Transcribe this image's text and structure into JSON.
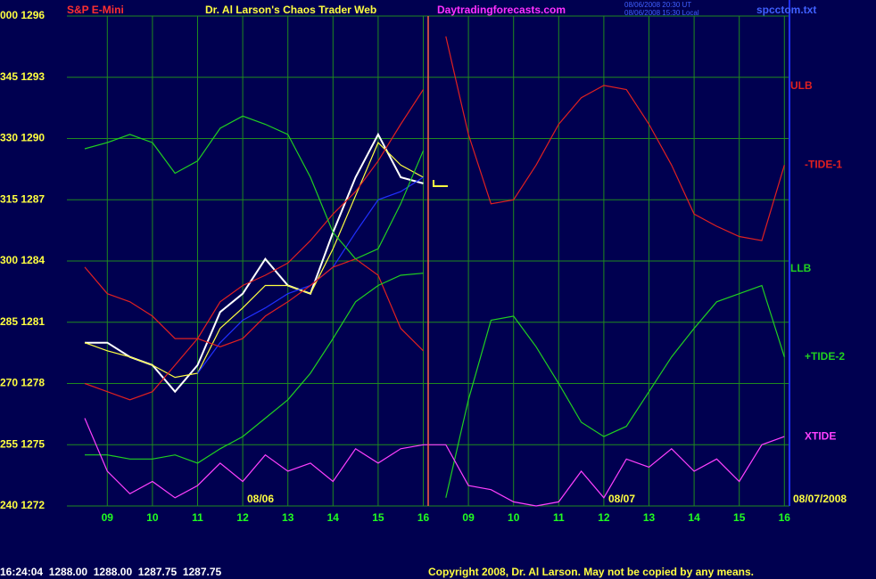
{
  "chart_data": {
    "type": "line",
    "title": "Dr. Al Larson's Chaos Trader Web",
    "categories": [
      null,
      "09",
      null,
      "10",
      null,
      "11",
      null,
      "12",
      null,
      "13",
      null,
      "14",
      null,
      "15",
      null,
      "16",
      null,
      "09",
      null,
      "10",
      null,
      "11",
      null,
      "12",
      null,
      "13",
      null,
      "14",
      null,
      "15",
      null,
      "16"
    ],
    "ylim": [
      1272,
      1296
    ],
    "yticks": [
      {
        "value": 1272,
        "label": "240 1272"
      },
      {
        "value": 1275,
        "label": "255 1275"
      },
      {
        "value": 1278,
        "label": "270 1278"
      },
      {
        "value": 1281,
        "label": "285 1281"
      },
      {
        "value": 1284,
        "label": "300 1284"
      },
      {
        "value": 1287,
        "label": "315 1287"
      },
      {
        "value": 1290,
        "label": "330 1290"
      },
      {
        "value": 1293,
        "label": "345 1293"
      },
      {
        "value": 1296,
        "label": "000 1296"
      }
    ],
    "grid": true,
    "series": [
      {
        "color": "#ffffff",
        "values": [
          1280.0,
          1280.0,
          1279.3,
          1278.9,
          1277.6,
          1278.9,
          1281.5,
          1282.4,
          1284.1,
          1282.8,
          1282.4,
          1285.4,
          1288.1,
          1290.2,
          1288.1,
          1287.8,
          null,
          null,
          null,
          null,
          null,
          null,
          null,
          null,
          null,
          null,
          null,
          null,
          null,
          null,
          null,
          null
        ]
      },
      {
        "color": "#ffff40",
        "values": [
          1280.0,
          1279.6,
          1279.3,
          1278.9,
          1278.3,
          1278.5,
          1280.7,
          1281.7,
          1282.8,
          1282.8,
          1282.4,
          1284.6,
          1287.2,
          1289.8,
          1288.7,
          1288.1,
          null,
          null,
          null,
          null,
          null,
          null,
          null,
          null,
          null,
          null,
          null,
          null,
          null,
          null,
          null,
          null
        ]
      },
      {
        "color": "#2030ff",
        "values": [
          null,
          null,
          null,
          null,
          null,
          1278.5,
          1280.0,
          1281.1,
          1281.7,
          1282.4,
          1282.8,
          1283.7,
          1285.4,
          1287.0,
          1287.4,
          1288.1,
          null,
          null,
          null,
          null,
          null,
          null,
          null,
          null,
          null,
          null,
          null,
          null,
          null,
          null,
          null,
          null
        ]
      },
      {
        "color": "#e02020",
        "values": [
          1283.7,
          1282.4,
          1282.0,
          1281.3,
          1280.2,
          1280.2,
          1282.0,
          1282.8,
          1283.3,
          1283.9,
          1285.0,
          1286.3,
          1287.4,
          1288.9,
          1290.7,
          1292.4,
          null,
          null,
          null,
          null,
          null,
          null,
          null,
          null,
          null,
          null,
          null,
          null,
          null,
          null,
          null,
          null
        ]
      },
      {
        "color": "#e02020",
        "values": [
          1278.0,
          1277.6,
          1277.2,
          1277.6,
          1278.9,
          1280.2,
          1279.8,
          1280.2,
          1281.3,
          1282.0,
          1282.8,
          1283.7,
          1284.1,
          1283.3,
          1280.7,
          1279.6,
          null,
          null,
          null,
          null,
          null,
          null,
          null,
          null,
          null,
          null,
          null,
          null,
          null,
          null,
          null,
          null
        ]
      },
      {
        "color": "#20d020",
        "values": [
          1289.5,
          1289.8,
          1290.2,
          1289.8,
          1288.3,
          1288.9,
          1290.5,
          1291.1,
          1290.7,
          1290.2,
          1288.1,
          1285.4,
          1284.1,
          1284.6,
          1286.8,
          1289.4,
          null,
          null,
          null,
          null,
          null,
          null,
          null,
          null,
          null,
          null,
          null,
          null,
          null,
          null,
          null,
          null
        ]
      },
      {
        "color": "#20d020",
        "values": [
          1274.5,
          1274.5,
          1274.3,
          1274.3,
          1274.5,
          1274.1,
          1274.8,
          1275.4,
          1276.3,
          1277.2,
          1278.5,
          1280.2,
          1282.0,
          1282.8,
          1283.3,
          1283.4,
          null,
          null,
          null,
          null,
          null,
          null,
          null,
          null,
          null,
          null,
          null,
          null,
          null,
          null,
          null,
          null
        ]
      },
      {
        "name": "-TIDE-1",
        "color": "#e02020",
        "values": [
          null,
          null,
          null,
          null,
          null,
          null,
          null,
          null,
          null,
          null,
          null,
          null,
          null,
          null,
          null,
          null,
          1295.0,
          1290.2,
          1286.8,
          1287.0,
          1288.7,
          1290.7,
          1292.0,
          1292.6,
          1292.4,
          1290.7,
          1288.7,
          1286.3,
          1285.7,
          1285.2,
          1285.0,
          1288.7
        ]
      },
      {
        "name": "+TIDE-2",
        "color": "#20d020",
        "values": [
          null,
          null,
          null,
          null,
          null,
          null,
          null,
          null,
          null,
          null,
          null,
          null,
          null,
          null,
          null,
          null,
          1272.4,
          1277.2,
          1281.1,
          1281.3,
          1279.8,
          1278.0,
          1276.1,
          1275.4,
          1275.9,
          1277.6,
          1279.3,
          1280.7,
          1282.0,
          1282.4,
          1282.8,
          1279.3
        ]
      },
      {
        "name": "XTIDE",
        "color": "#ff40ff",
        "values": [
          1276.3,
          1273.7,
          1272.6,
          1273.2,
          1272.4,
          1273.0,
          1274.1,
          1273.2,
          1274.5,
          1273.7,
          1274.1,
          1273.2,
          1274.8,
          1274.1,
          1274.8,
          1275.0,
          1275.0,
          1273.0,
          1272.8,
          1272.2,
          1272.0,
          1272.2,
          1273.7,
          1272.4,
          1274.3,
          1273.9,
          1274.8,
          1273.7,
          1274.3,
          1273.2,
          1275.0,
          1275.4
        ]
      }
    ],
    "annotations": {
      "ulb": "ULB",
      "llb": "LLB",
      "day1": "08/06",
      "day2": "08/07",
      "date": "08/07/2008"
    }
  },
  "header": {
    "symbol": "S&P E-Mini",
    "site": "Daytradingforecasts.com",
    "file": "spcctom.txt",
    "time_ut": "08/06/2008 20:30 UT",
    "time_local": "08/06/2008 15:30 Local"
  },
  "footer": {
    "quote": "16:24:04  1288.00  1288.00  1287.75  1287.75",
    "copyright": "Copyright 2008, Dr. Al Larson. May not be copied by any means."
  }
}
